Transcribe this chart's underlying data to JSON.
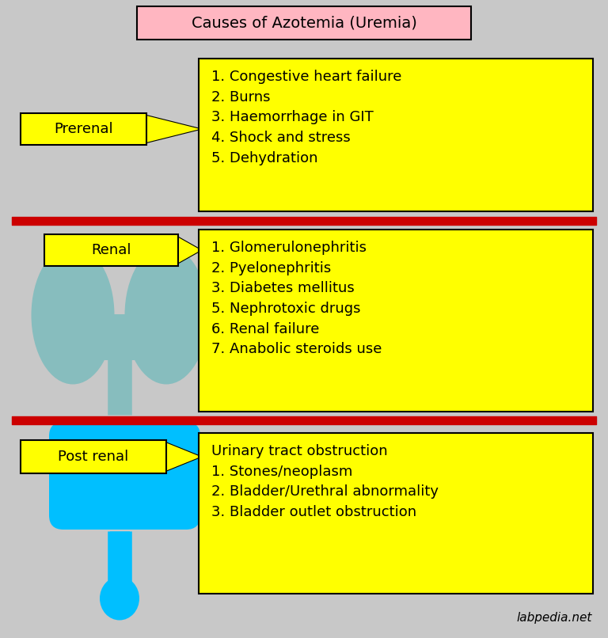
{
  "title": "Causes of Azotemia (Uremia)",
  "title_bg": "#FFB6C1",
  "background_color": "#C8C8C8",
  "yellow": "#FFFF00",
  "red_line_color": "#CC0000",
  "section_labels": [
    "Prerenal",
    "Renal",
    "Post renal"
  ],
  "prerenal_items": "1. Congestive heart failure\n2. Burns\n3. Haemorrhage in GIT\n4. Shock and stress\n5. Dehydration",
  "renal_items": "1. Glomerulonephritis\n2. Pyelonephritis\n3. Diabetes mellitus\n5. Nephrotoxic drugs\n6. Renal failure\n7. Anabolic steroids use",
  "postrenal_items": "Urinary tract obstruction\n1. Stones/neoplasm\n2. Bladder/Urethral abnormality\n3. Bladder outlet obstruction",
  "kidney_color": "#87BDBE",
  "bladder_color": "#00BFFF",
  "watermark": "labpedia.net"
}
